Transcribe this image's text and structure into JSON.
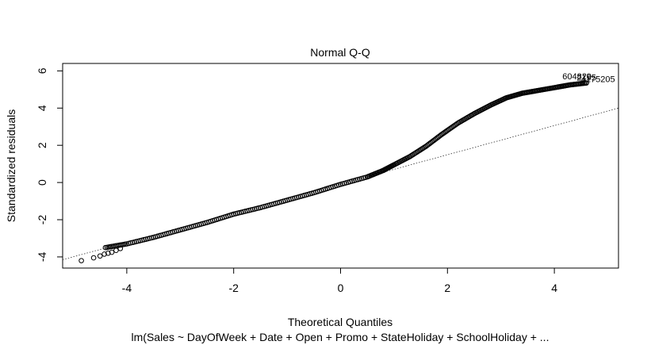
{
  "chart_data": {
    "type": "scatter",
    "title": "Normal Q-Q",
    "xlabel": "Theoretical Quantiles",
    "ylabel": "Standardized residuals",
    "subtitle": "lm(Sales ~ DayOfWeek + Date + Open + Promo + StateHoliday + SchoolHoliday + ...",
    "xlim": [
      -5.2,
      5.2
    ],
    "ylim": [
      -4.6,
      6.4
    ],
    "x_ticks": [
      -4,
      -2,
      0,
      2,
      4
    ],
    "y_ticks": [
      -4,
      -2,
      0,
      2,
      4,
      6
    ],
    "x_tick_labels": [
      "-4",
      "-2",
      "0",
      "2",
      "4"
    ],
    "y_tick_labels": [
      "-4",
      "-2",
      "0",
      "2",
      "4",
      "6"
    ],
    "grid": false,
    "reference_line": {
      "style": "dotted",
      "points": [
        [
          -5.2,
          -4.15
        ],
        [
          5.2,
          4.0
        ]
      ]
    },
    "qq_curve": [
      [
        -4.4,
        -3.5
      ],
      [
        -4.0,
        -3.3
      ],
      [
        -3.5,
        -2.95
      ],
      [
        -3.0,
        -2.55
      ],
      [
        -2.5,
        -2.15
      ],
      [
        -2.0,
        -1.7
      ],
      [
        -1.5,
        -1.35
      ],
      [
        -1.0,
        -0.95
      ],
      [
        -0.5,
        -0.55
      ],
      [
        0.0,
        -0.1
      ],
      [
        0.5,
        0.3
      ],
      [
        0.8,
        0.65
      ],
      [
        1.0,
        0.95
      ],
      [
        1.3,
        1.4
      ],
      [
        1.6,
        1.95
      ],
      [
        1.9,
        2.6
      ],
      [
        2.2,
        3.2
      ],
      [
        2.5,
        3.7
      ],
      [
        2.8,
        4.15
      ],
      [
        3.1,
        4.55
      ],
      [
        3.4,
        4.8
      ],
      [
        3.7,
        4.95
      ],
      [
        4.0,
        5.1
      ],
      [
        4.3,
        5.25
      ],
      [
        4.6,
        5.35
      ]
    ],
    "tail_points": [
      [
        -4.85,
        -4.2
      ],
      [
        -4.62,
        -4.05
      ],
      [
        -4.5,
        -3.95
      ],
      [
        -4.42,
        -3.85
      ],
      [
        -4.35,
        -3.8
      ],
      [
        -4.28,
        -3.75
      ],
      [
        -4.2,
        -3.65
      ],
      [
        -4.12,
        -3.55
      ]
    ],
    "point_labels": [
      {
        "text": "604829",
        "x": 4.15,
        "y": 5.55
      },
      {
        "text": "4175205",
        "x": 4.5,
        "y": 5.4
      },
      {
        "text": "2195",
        "x": 4.42,
        "y": 5.48
      }
    ]
  }
}
